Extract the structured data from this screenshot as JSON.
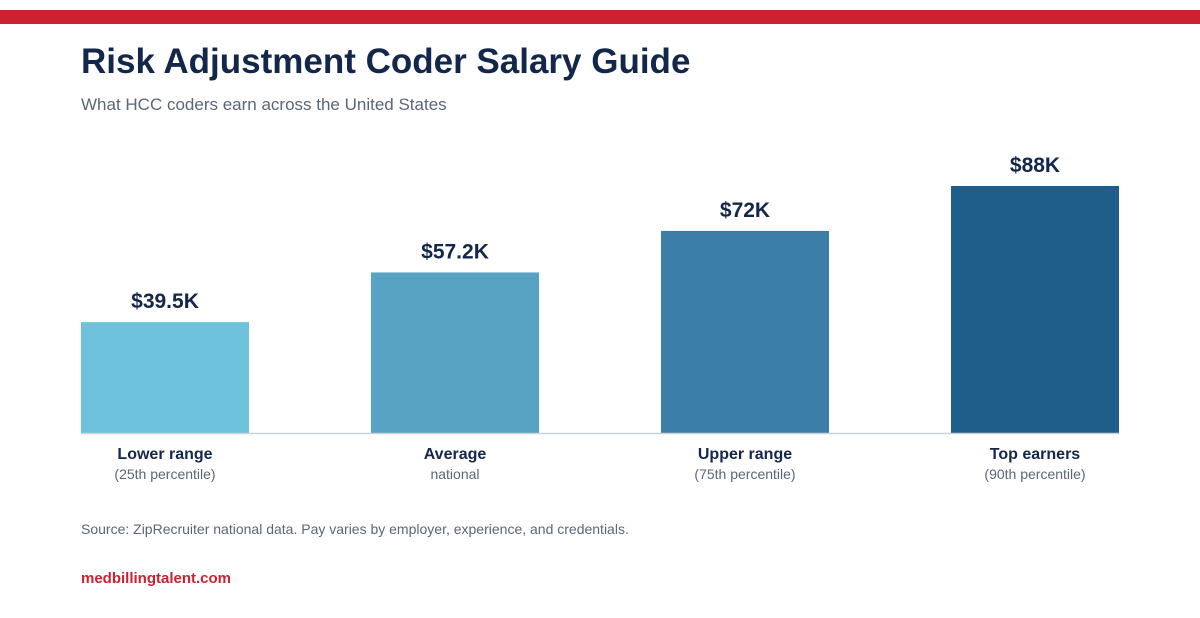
{
  "title": "Risk Adjustment Coder Salary Guide",
  "subtitle": "What HCC coders earn across the United States",
  "source": "Source: ZipRecruiter national data. Pay varies by employer, experience, and credentials.",
  "brand": "medbillingtalent.com",
  "colors": {
    "accent": "#cc2131",
    "title": "#13274a",
    "bars": [
      "#6fc2dc",
      "#58a3c3",
      "#3b7fa8",
      "#1f5e8a"
    ]
  },
  "chart_data": {
    "type": "bar",
    "categories": [
      "Lower range",
      "Average",
      "Upper range",
      "Top earners"
    ],
    "sublabels": [
      "(25th percentile)",
      "national",
      "(75th percentile)",
      "(90th percentile)"
    ],
    "values": [
      39.5,
      57.2,
      72,
      88
    ],
    "value_labels": [
      "$39.5K",
      "$57.2K",
      "$72K",
      "$88K"
    ],
    "unit": "thousand USD",
    "ylim": [
      0,
      88
    ],
    "grid": false,
    "legend": "none"
  }
}
